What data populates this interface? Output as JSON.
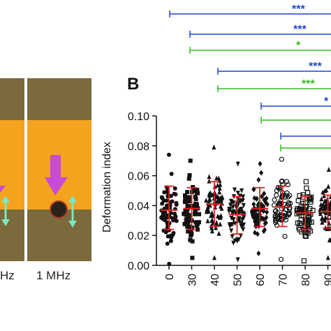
{
  "panel_letter": "B",
  "left_panel": {
    "labels": [
      "Hz",
      "1 MHz"
    ]
  },
  "colors": {
    "blue": "#2244cc",
    "green": "#33bb22",
    "red": "#e02020",
    "arrow_magenta": "#c84ad8",
    "arrow_cyan": "#7fe6c0",
    "band_orange": "#f5a21e",
    "band_dark": "#6b5a2e"
  },
  "significance": [
    {
      "label": "***",
      "color": "blue"
    },
    {
      "label": "***",
      "color": "blue"
    },
    {
      "label": "*",
      "color": "green"
    },
    {
      "label": "***",
      "color": "blue"
    },
    {
      "label": "***",
      "color": "green"
    },
    {
      "label": "*",
      "color": "blue"
    },
    {
      "label": "",
      "color": "green"
    },
    {
      "label": "",
      "color": "blue"
    },
    {
      "label": "",
      "color": "green"
    }
  ],
  "chart_data": {
    "type": "scatter",
    "ylabel": "Deformation index",
    "ylim": [
      0.0,
      0.1
    ],
    "yticks": [
      "0.00",
      "0.02",
      "0.04",
      "0.06",
      "0.08",
      "0.10"
    ],
    "categories": [
      "0",
      "30",
      "40",
      "50",
      "60",
      "70",
      "80",
      "90"
    ],
    "mean": [
      0.037,
      0.038,
      0.041,
      0.034,
      0.038,
      0.039,
      0.035,
      0.036
    ],
    "sd_low": [
      0.024,
      0.024,
      0.026,
      0.021,
      0.026,
      0.026,
      0.024,
      0.025
    ],
    "sd_high": [
      0.053,
      0.052,
      0.056,
      0.046,
      0.052,
      0.053,
      0.046,
      0.047
    ],
    "range_min": [
      0.001,
      0.005,
      0.005,
      0.004,
      0.008,
      0.004,
      0.003,
      0.005
    ],
    "range_max": [
      0.074,
      0.07,
      0.079,
      0.068,
      0.068,
      0.071,
      0.056,
      0.064
    ],
    "markers": [
      "circle",
      "square",
      "triangle-up",
      "triangle-down",
      "diamond",
      "circle-open",
      "square-open",
      "triangle-up"
    ],
    "grid": false
  }
}
